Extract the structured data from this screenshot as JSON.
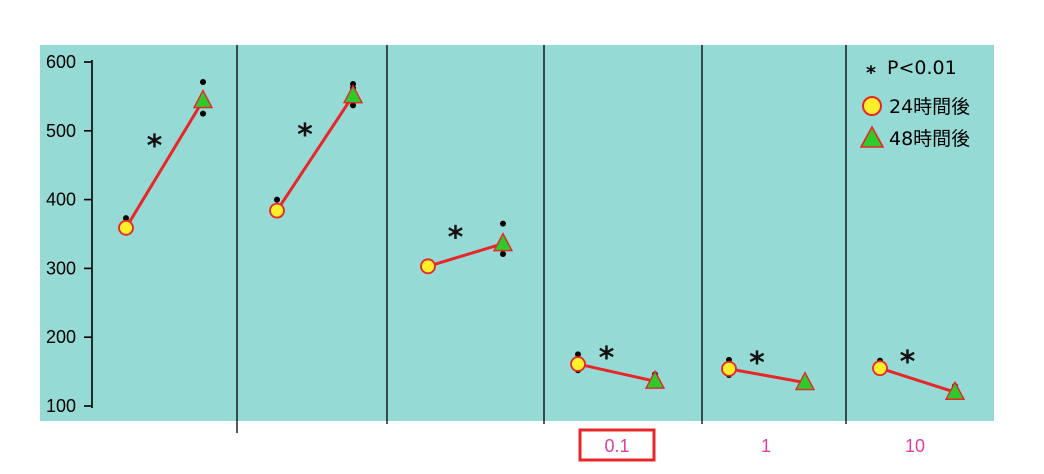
{
  "chart_data": {
    "type": "line",
    "ylim": [
      100,
      600
    ],
    "y_ticks": [
      "100",
      "200",
      "300",
      "400",
      "500",
      "600"
    ],
    "background_color": "#96dad6",
    "line_color": "#e8262a",
    "marker_24h_fill": "#ffef2a",
    "marker_48h_fill": "#2ec92a",
    "label_color": "#e0409a",
    "highlight_box_color": "#e8262a",
    "grid": false,
    "legend_position": "top-right",
    "significance_symbol": "*",
    "legend": {
      "pvalue": "P<0.01",
      "series": [
        {
          "name": "24時間後",
          "marker": "circle"
        },
        {
          "name": "48時間後",
          "marker": "triangle"
        }
      ]
    },
    "panels": [
      {
        "label": "",
        "highlight": false,
        "mean_24h": 359,
        "mean_48h": 544,
        "points_24h": [
          373,
          361
        ],
        "points_48h": [
          571,
          550,
          525
        ]
      },
      {
        "label": "",
        "highlight": false,
        "mean_24h": 384,
        "mean_48h": 551,
        "points_24h": [
          400,
          378
        ],
        "points_48h": [
          568,
          562,
          537
        ]
      },
      {
        "label": "",
        "highlight": false,
        "mean_24h": 303,
        "mean_48h": 336,
        "points_24h": [
          308,
          299
        ],
        "points_48h": [
          365,
          321
        ]
      },
      {
        "label": "0.1",
        "highlight": true,
        "mean_24h": 161,
        "mean_48h": 136,
        "points_24h": [
          175,
          166,
          152
        ],
        "points_48h": [
          146,
          140
        ]
      },
      {
        "label": "1",
        "highlight": false,
        "mean_24h": 154,
        "mean_48h": 134,
        "points_24h": [
          167,
          159,
          145
        ],
        "points_48h": [
          141,
          137
        ]
      },
      {
        "label": "10",
        "highlight": false,
        "mean_24h": 155,
        "mean_48h": 120,
        "points_24h": [
          166,
          159,
          150
        ],
        "points_48h": [
          129,
          125
        ]
      }
    ]
  }
}
